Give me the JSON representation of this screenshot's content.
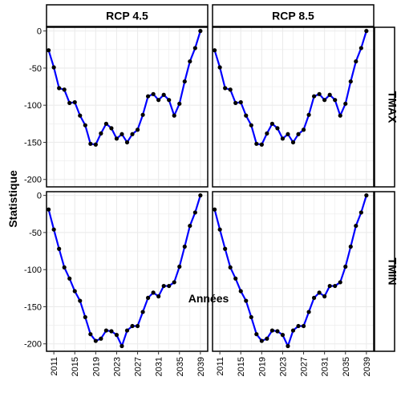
{
  "chart_data": {
    "type": "line",
    "facets": {
      "columns": [
        "RCP 4.5",
        "RCP 8.5"
      ],
      "rows": [
        "TMAX",
        "TMIN"
      ]
    },
    "xlabel": "Années",
    "ylabel": "Statistique",
    "x_ticks": [
      2011,
      2015,
      2019,
      2023,
      2027,
      2031,
      2035,
      2039
    ],
    "y_ticks": [
      0,
      -50,
      -100,
      -150,
      -200
    ],
    "xlim": [
      2009.6,
      2040.4
    ],
    "ylim": [
      -210,
      5
    ],
    "grid": true,
    "years": [
      2010,
      2011,
      2012,
      2013,
      2014,
      2015,
      2016,
      2017,
      2018,
      2019,
      2020,
      2021,
      2022,
      2023,
      2024,
      2025,
      2026,
      2027,
      2028,
      2029,
      2030,
      2031,
      2032,
      2033,
      2034,
      2035,
      2036,
      2037,
      2038,
      2039
    ],
    "panels": [
      {
        "column": "RCP 4.5",
        "row": "TMAX",
        "values": [
          -26,
          -49,
          -77,
          -79,
          -97,
          -96,
          -114,
          -127,
          -152,
          -153,
          -138,
          -125,
          -131,
          -145,
          -139,
          -150,
          -139,
          -133,
          -113,
          -88,
          -85,
          -93,
          -86,
          -93,
          -114,
          -98,
          -68,
          -41,
          -23,
          0
        ]
      },
      {
        "column": "RCP 8.5",
        "row": "TMAX",
        "values": [
          -26,
          -49,
          -77,
          -79,
          -97,
          -96,
          -114,
          -127,
          -152,
          -153,
          -138,
          -125,
          -131,
          -145,
          -139,
          -150,
          -139,
          -133,
          -113,
          -88,
          -85,
          -93,
          -86,
          -93,
          -114,
          -98,
          -68,
          -41,
          -23,
          0
        ]
      },
      {
        "column": "RCP 4.5",
        "row": "TMIN",
        "values": [
          -19,
          -46,
          -72,
          -97,
          -112,
          -129,
          -142,
          -164,
          -187,
          -196,
          -193,
          -182,
          -183,
          -188,
          -203,
          -182,
          -176,
          -176,
          -157,
          -138,
          -131,
          -136,
          -122,
          -122,
          -117,
          -96,
          -69,
          -41,
          -23,
          0
        ]
      },
      {
        "column": "RCP 8.5",
        "row": "TMIN",
        "values": [
          -19,
          -46,
          -72,
          -97,
          -112,
          -129,
          -142,
          -164,
          -187,
          -196,
          -193,
          -182,
          -183,
          -188,
          -203,
          -182,
          -176,
          -176,
          -157,
          -138,
          -131,
          -136,
          -122,
          -122,
          -117,
          -96,
          -69,
          -41,
          -23,
          0
        ]
      }
    ],
    "line_color": "#0000ff",
    "point_color": "#000000",
    "grid_color": "#ebebeb"
  }
}
